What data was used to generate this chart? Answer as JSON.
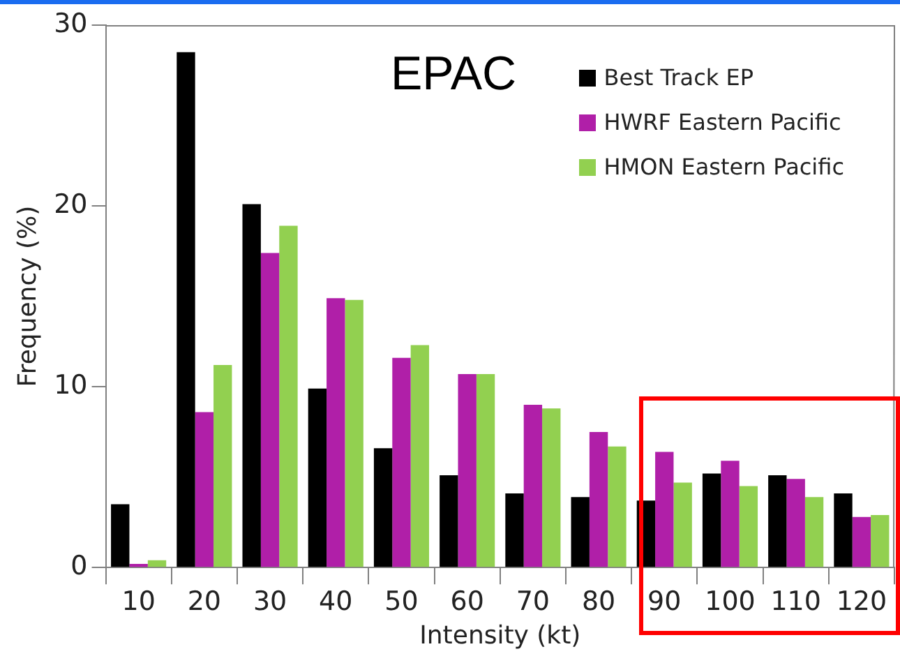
{
  "chart_data": {
    "type": "bar",
    "title": "EPAC",
    "xlabel": "Intensity (kt)",
    "ylabel": "Frequency (%)",
    "categories": [
      "10",
      "20",
      "30",
      "40",
      "50",
      "60",
      "70",
      "80",
      "90",
      "100",
      "110",
      "120"
    ],
    "series": [
      {
        "name": "Best Track EP",
        "color": "#000000",
        "values": [
          3.5,
          28.5,
          20.1,
          9.9,
          6.6,
          5.1,
          4.1,
          3.9,
          3.7,
          5.2,
          5.1,
          4.1
        ]
      },
      {
        "name": "HWRF Eastern Pacific",
        "color": "#b01fa8",
        "values": [
          0.2,
          8.6,
          17.4,
          14.9,
          11.6,
          10.7,
          9.0,
          7.5,
          6.4,
          5.9,
          4.9,
          2.8
        ]
      },
      {
        "name": "HMON Eastern Pacific",
        "color": "#92d050",
        "values": [
          0.4,
          11.2,
          18.9,
          14.8,
          12.3,
          10.7,
          8.8,
          6.7,
          4.7,
          4.5,
          3.9,
          2.9
        ]
      }
    ],
    "ylim": [
      0,
      30
    ],
    "yticks": [
      0,
      10,
      20,
      30
    ],
    "grid": false,
    "legend": "top right"
  }
}
